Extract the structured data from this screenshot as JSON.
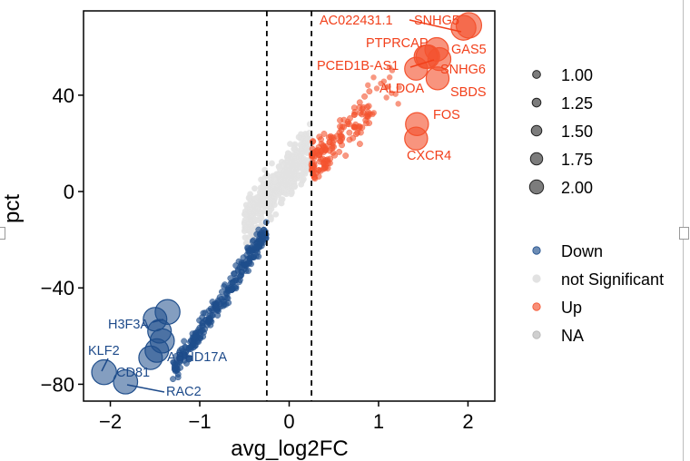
{
  "chart_data": {
    "type": "scatter",
    "xlabel": "avg_log2FC",
    "ylabel": "pct",
    "xlim": [
      -2.3,
      2.3
    ],
    "ylim": [
      -87,
      75
    ],
    "x_ticks": [
      -2,
      -1,
      0,
      1,
      2
    ],
    "y_ticks": [
      -80,
      -40,
      0,
      40
    ],
    "x_tick_labels": [
      "−2",
      "−1",
      "0",
      "1",
      "2"
    ],
    "y_tick_labels": [
      "−80",
      "−40",
      "0",
      "40"
    ],
    "thresholds": [
      -0.25,
      0.25
    ],
    "grid": false,
    "legend_position": "right",
    "colors": {
      "down": "#1f4e8c",
      "not_significant": "#e2e2e2",
      "up": "#f4532f",
      "na": "#b5b5b5",
      "down_label": "#1d4a8a",
      "up_label": "#f2401b"
    },
    "size_legend": {
      "values": [
        "1.00",
        "1.25",
        "1.50",
        "1.75",
        "2.00"
      ]
    },
    "color_legend": {
      "labels": [
        "Down",
        "not Significant",
        "Up",
        "NA"
      ]
    },
    "labeled_points": [
      {
        "gene": "AC022431.1",
        "x": 1.95,
        "y": 68,
        "size": 1.95,
        "group": "up"
      },
      {
        "gene": "SNHG5",
        "x": 2.01,
        "y": 69,
        "size": 2.0,
        "group": "up"
      },
      {
        "gene": "PTPRCAP",
        "x": 1.55,
        "y": 56,
        "size": 1.85,
        "group": "up"
      },
      {
        "gene": "GAS5",
        "x": 1.65,
        "y": 59,
        "size": 1.85,
        "group": "up"
      },
      {
        "gene": "PCED1B-AS1",
        "x": 1.53,
        "y": 56,
        "size": 1.85,
        "group": "up"
      },
      {
        "gene": "SNHG6",
        "x": 1.68,
        "y": 55,
        "size": 1.8,
        "group": "up"
      },
      {
        "gene": "ALDOA",
        "x": 1.42,
        "y": 51,
        "size": 1.8,
        "group": "up"
      },
      {
        "gene": "SBDS",
        "x": 1.66,
        "y": 47,
        "size": 1.8,
        "group": "up"
      },
      {
        "gene": "FOS",
        "x": 1.43,
        "y": 28,
        "size": 1.8,
        "group": "up"
      },
      {
        "gene": "CXCR4",
        "x": 1.42,
        "y": 22,
        "size": 1.8,
        "group": "up"
      },
      {
        "gene": "H3F3A",
        "x": -1.36,
        "y": -50,
        "size": 1.95,
        "group": "down"
      },
      {
        "gene": "ABHD17A",
        "x": -1.42,
        "y": -62,
        "size": 1.9,
        "group": "down"
      },
      {
        "gene": "KLF2",
        "x": -2.07,
        "y": -75,
        "size": 1.95,
        "group": "down"
      },
      {
        "gene": "CD81",
        "x": -1.55,
        "y": -69,
        "size": 1.85,
        "group": "down"
      },
      {
        "gene": "RAC2",
        "x": -1.83,
        "y": -79,
        "size": 1.9,
        "group": "down"
      },
      {
        "gene": "",
        "x": -1.5,
        "y": -53,
        "size": 1.85,
        "group": "down"
      },
      {
        "gene": "",
        "x": -1.45,
        "y": -58,
        "size": 1.85,
        "group": "down"
      },
      {
        "gene": "",
        "x": -1.48,
        "y": -66,
        "size": 1.85,
        "group": "down"
      }
    ]
  }
}
